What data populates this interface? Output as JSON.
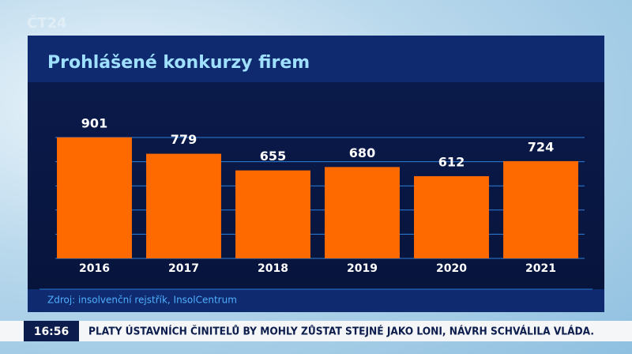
{
  "channel_logo": "ČT24",
  "chart_data": {
    "type": "bar",
    "title": "Prohlášené konkurzy firem",
    "categories": [
      "2016",
      "2017",
      "2018",
      "2019",
      "2020",
      "2021"
    ],
    "values": [
      901,
      779,
      655,
      680,
      612,
      724
    ],
    "color": "#ff6a00",
    "ylim": [
      0,
      1000
    ],
    "yticks": [
      0,
      180,
      360,
      540,
      720,
      900
    ],
    "grid": true,
    "source": "Zdroj: insolvenční rejstřík, InsolCentrum"
  },
  "ticker": {
    "time": "16:56",
    "headline": "PLATY ÚSTAVNÍCH ČINITELŮ BY MOHLY ZŮSTAT STEJNÉ JAKO LONI, NÁVRH SCHVÁLILA VLÁDA."
  }
}
